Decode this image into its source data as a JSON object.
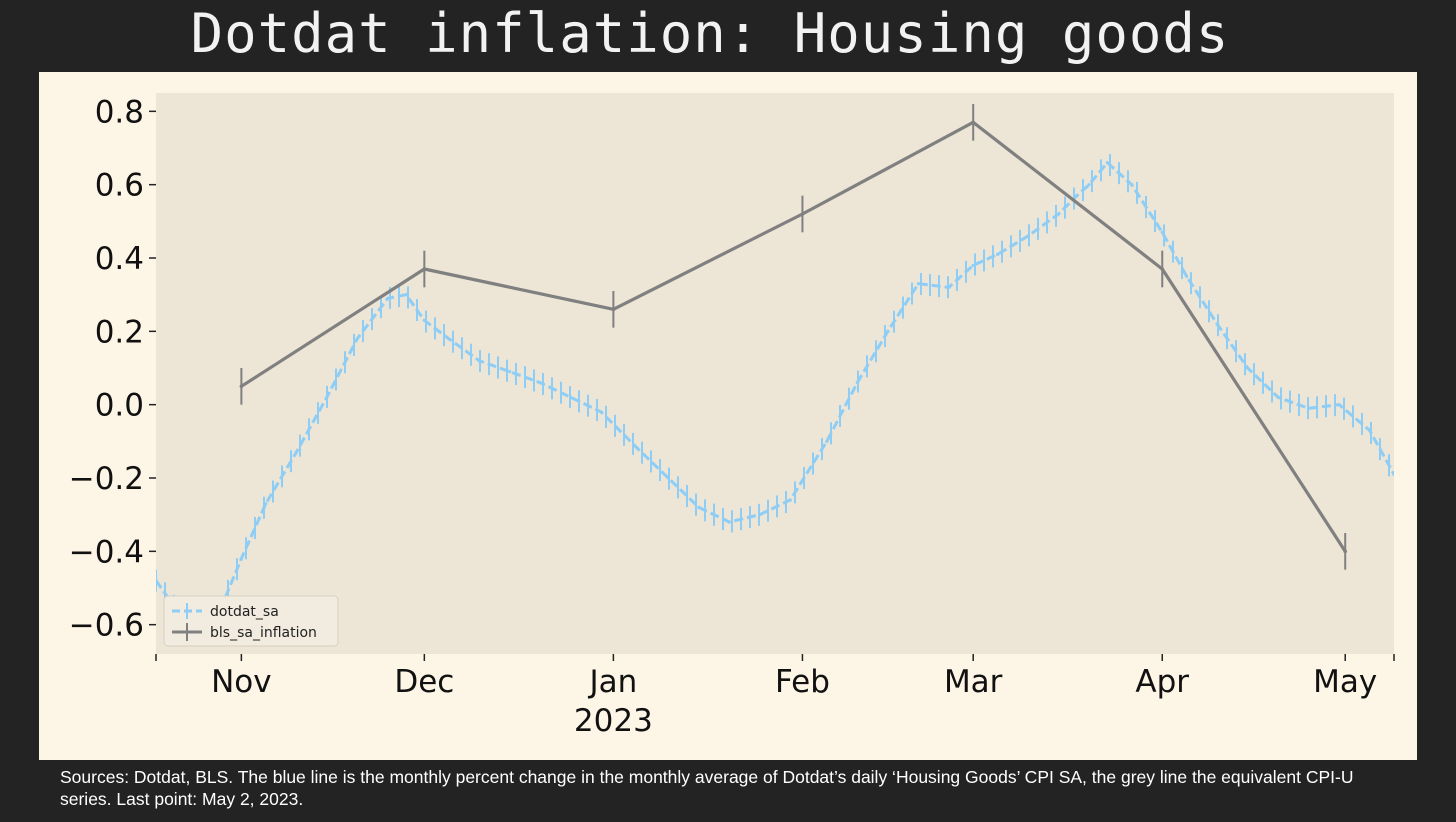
{
  "title": "Dotdat inflation: Housing goods",
  "caption": "Sources: Dotdat, BLS. The blue line is the monthly percent change in the monthly average of Dotdat’s daily ‘Housing Goods’ CPI SA, the grey line the equivalent CPI-U series. Last point: May 2, 2023.",
  "colors": {
    "background": "#232323",
    "panel": "#fdf5e6",
    "plot_area": "#ede5d5",
    "dotdat_line": "#8ecdf5",
    "bls_line": "#808080"
  },
  "chart_data": {
    "type": "line",
    "title": "Dotdat inflation: Housing goods",
    "xlabel": "",
    "ylabel": "",
    "x_ticks": [
      {
        "date": "2022-11-01",
        "label": "Nov",
        "sublabel": ""
      },
      {
        "date": "2022-12-01",
        "label": "Dec",
        "sublabel": ""
      },
      {
        "date": "2023-01-01",
        "label": "Jan",
        "sublabel": "2023"
      },
      {
        "date": "2023-02-01",
        "label": "Feb",
        "sublabel": ""
      },
      {
        "date": "2023-03-01",
        "label": "Mar",
        "sublabel": ""
      },
      {
        "date": "2023-04-01",
        "label": "Apr",
        "sublabel": ""
      },
      {
        "date": "2023-05-01",
        "label": "May",
        "sublabel": ""
      }
    ],
    "xlim": [
      "2022-10-18",
      "2023-05-09"
    ],
    "y_ticks": [
      {
        "value": 0.8,
        "label": "0.8"
      },
      {
        "value": 0.6,
        "label": "0.6"
      },
      {
        "value": 0.4,
        "label": "0.4"
      },
      {
        "value": 0.2,
        "label": "0.2"
      },
      {
        "value": 0.0,
        "label": "0.0"
      },
      {
        "value": -0.2,
        "label": "−0.2"
      },
      {
        "value": -0.4,
        "label": "−0.4"
      },
      {
        "value": -0.6,
        "label": "−0.6"
      }
    ],
    "ylim": [
      -0.68,
      0.85
    ],
    "grid": false,
    "legend_position": "bottom-left",
    "series": [
      {
        "name": "dotdat_sa",
        "style": "dashed",
        "error_bar": 0.03,
        "x": [
          "2022-10-18",
          "2022-10-21",
          "2022-10-25",
          "2022-10-28",
          "2022-11-01",
          "2022-11-05",
          "2022-11-10",
          "2022-11-15",
          "2022-11-20",
          "2022-11-25",
          "2022-11-28",
          "2022-12-01",
          "2022-12-05",
          "2022-12-10",
          "2022-12-15",
          "2022-12-20",
          "2022-12-25",
          "2022-12-30",
          "2023-01-05",
          "2023-01-10",
          "2023-01-15",
          "2023-01-20",
          "2023-01-25",
          "2023-01-30",
          "2023-02-05",
          "2023-02-10",
          "2023-02-15",
          "2023-02-20",
          "2023-02-25",
          "2023-03-01",
          "2023-03-05",
          "2023-03-10",
          "2023-03-15",
          "2023-03-18",
          "2023-03-20",
          "2023-03-23",
          "2023-03-27",
          "2023-04-01",
          "2023-04-05",
          "2023-04-10",
          "2023-04-15",
          "2023-04-20",
          "2023-04-25",
          "2023-04-30",
          "2023-05-05",
          "2023-05-09"
        ],
        "values": [
          -0.48,
          -0.55,
          -0.6,
          -0.58,
          -0.42,
          -0.27,
          -0.13,
          0.02,
          0.18,
          0.29,
          0.3,
          0.23,
          0.18,
          0.12,
          0.09,
          0.06,
          0.02,
          -0.02,
          -0.12,
          -0.2,
          -0.28,
          -0.32,
          -0.3,
          -0.26,
          -0.1,
          0.06,
          0.2,
          0.33,
          0.32,
          0.38,
          0.41,
          0.46,
          0.52,
          0.57,
          0.6,
          0.66,
          0.6,
          0.47,
          0.35,
          0.22,
          0.1,
          0.02,
          -0.01,
          0.0,
          -0.07,
          -0.19
        ]
      },
      {
        "name": "bls_sa_inflation",
        "style": "solid",
        "error_bar": 0.05,
        "x": [
          "2022-11-01",
          "2022-12-01",
          "2023-01-01",
          "2023-02-01",
          "2023-03-01",
          "2023-04-01",
          "2023-05-01"
        ],
        "values": [
          0.05,
          0.37,
          0.26,
          0.52,
          0.77,
          0.37,
          -0.4
        ]
      }
    ]
  }
}
